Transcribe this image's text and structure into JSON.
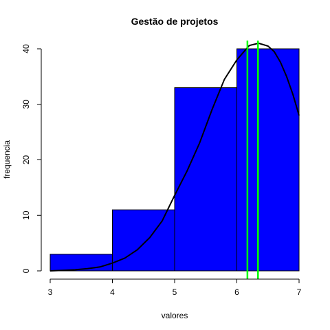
{
  "chart_data": {
    "type": "bar",
    "title": "Gestão de projetos",
    "xlabel": "valores",
    "ylabel": "frequencia",
    "bins": [
      {
        "from": 3,
        "to": 4,
        "count": 3
      },
      {
        "from": 4,
        "to": 5,
        "count": 11
      },
      {
        "from": 5,
        "to": 6,
        "count": 33
      },
      {
        "from": 6,
        "to": 7,
        "count": 40
      }
    ],
    "xlim": [
      3,
      7
    ],
    "ylim": [
      0,
      40
    ],
    "x_ticks": [
      3,
      4,
      5,
      6,
      7
    ],
    "y_ticks": [
      0,
      10,
      20,
      30,
      40
    ],
    "bar_color": "#0000ff",
    "curve": {
      "color": "#000000",
      "points": [
        [
          3.0,
          0.0
        ],
        [
          3.2,
          0.1
        ],
        [
          3.4,
          0.2
        ],
        [
          3.6,
          0.4
        ],
        [
          3.8,
          0.7
        ],
        [
          4.0,
          1.4
        ],
        [
          4.2,
          2.3
        ],
        [
          4.4,
          3.8
        ],
        [
          4.6,
          6.0
        ],
        [
          4.8,
          9.0
        ],
        [
          5.0,
          13.6
        ],
        [
          5.2,
          18.0
        ],
        [
          5.4,
          23.0
        ],
        [
          5.6,
          29.0
        ],
        [
          5.8,
          34.5
        ],
        [
          6.0,
          38.0
        ],
        [
          6.2,
          40.6
        ],
        [
          6.35,
          41.0
        ],
        [
          6.5,
          40.5
        ],
        [
          6.6,
          39.5
        ],
        [
          6.7,
          37.6
        ],
        [
          6.8,
          35.0
        ],
        [
          6.9,
          31.8
        ],
        [
          7.0,
          28.0
        ]
      ]
    },
    "vertical_lines": {
      "color": "#00ff00",
      "x": [
        6.17,
        6.34
      ]
    }
  }
}
